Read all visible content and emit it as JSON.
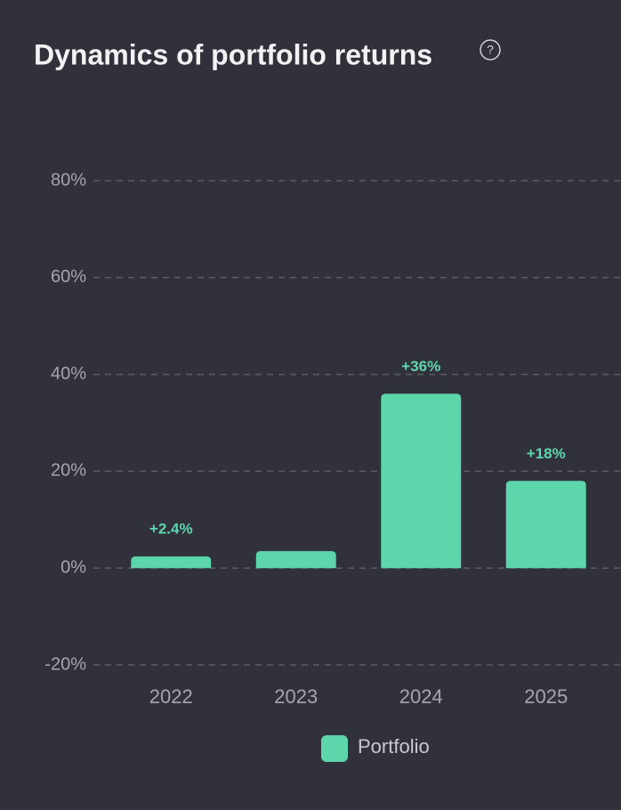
{
  "chart_data": {
    "type": "bar",
    "title": "Dynamics of portfolio returns",
    "categories": [
      "2022",
      "2023",
      "2024",
      "2025"
    ],
    "series": [
      {
        "name": "Portfolio",
        "color": "#5dd6ac",
        "values": [
          2.4,
          3.5,
          36,
          18
        ],
        "value_labels": [
          "+2.4%",
          null,
          "+36%",
          "+18%"
        ]
      }
    ],
    "ylim": [
      -20,
      80
    ],
    "yticks": [
      {
        "value": -20,
        "label": "-20%"
      },
      {
        "value": 0,
        "label": "0%"
      },
      {
        "value": 20,
        "label": "20%"
      },
      {
        "value": 40,
        "label": "40%"
      },
      {
        "value": 60,
        "label": "60%"
      },
      {
        "value": 80,
        "label": "80%"
      }
    ],
    "grid": true,
    "legend": "bottom"
  }
}
